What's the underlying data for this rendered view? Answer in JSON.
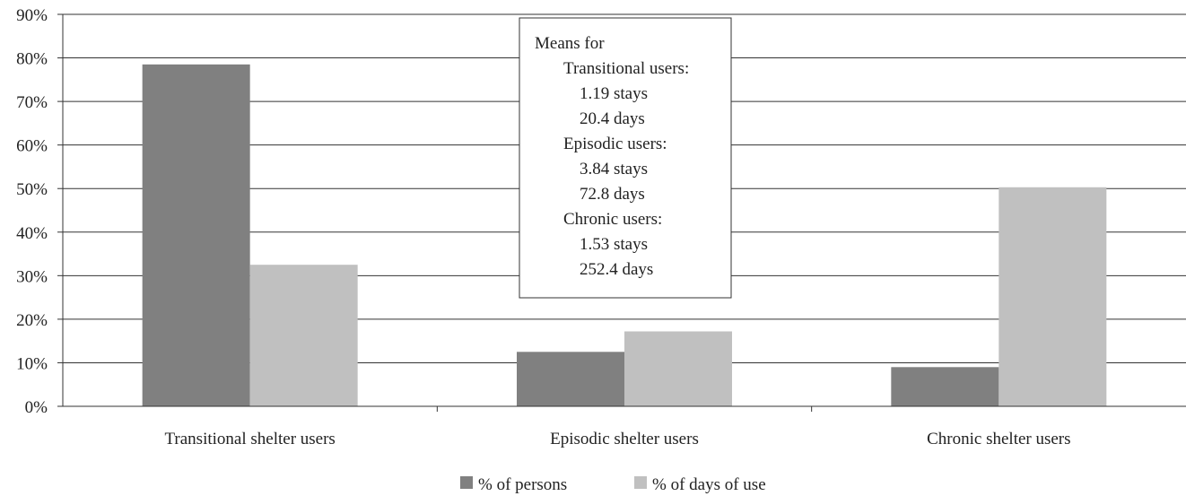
{
  "chart_data": {
    "type": "bar",
    "categories": [
      "Transitional shelter users",
      "Episodic shelter users",
      "Chronic shelter users"
    ],
    "series": [
      {
        "name": "% of persons",
        "values": [
          78.5,
          12.5,
          9.0
        ],
        "color": "#808080"
      },
      {
        "name": "% of days of use",
        "values": [
          32.5,
          17.2,
          50.3
        ],
        "color": "#c0c0c0"
      }
    ],
    "y_ticks": [
      "0%",
      "10%",
      "20%",
      "30%",
      "40%",
      "50%",
      "60%",
      "70%",
      "80%",
      "90%"
    ],
    "ylim": [
      0,
      90
    ],
    "y_unit": "percent",
    "grid": true,
    "legend_position": "bottom",
    "annotation": {
      "lines": [
        "Means for",
        "Transitional users:",
        "1.19 stays",
        "20.4 days",
        "Episodic users:",
        "3.84 stays",
        "72.8 days",
        "Chronic users:",
        "1.53 stays",
        "252.4 days"
      ]
    }
  }
}
